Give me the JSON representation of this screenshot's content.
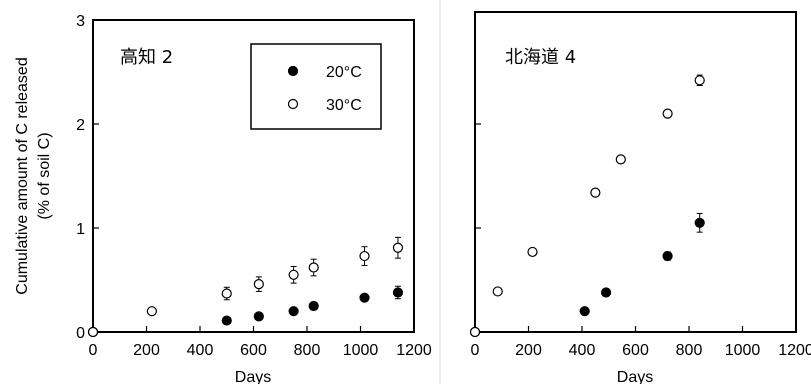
{
  "chart_data": [
    {
      "type": "scatter",
      "title": "高知 2",
      "xlabel": "Days",
      "ylabel_lines": [
        "Cumulative amount of C released",
        "(% of soil C)"
      ],
      "xlim": [
        0,
        1200
      ],
      "ylim": [
        0,
        3
      ],
      "x_ticks": [
        "0",
        "200",
        "400",
        "600",
        "800",
        "1000",
        "1200"
      ],
      "y_ticks": [
        "0",
        "1",
        "2",
        "3"
      ],
      "legend": {
        "placement": "top-right",
        "items": [
          "20°C",
          "30°C"
        ]
      },
      "series": [
        {
          "name": "20°C",
          "marker": "filled-circle",
          "points": [
            {
              "x": 0,
              "y": 0.0,
              "err": 0
            },
            {
              "x": 500,
              "y": 0.11,
              "err": 0
            },
            {
              "x": 620,
              "y": 0.15,
              "err": 0
            },
            {
              "x": 750,
              "y": 0.2,
              "err": 0
            },
            {
              "x": 825,
              "y": 0.25,
              "err": 0
            },
            {
              "x": 1015,
              "y": 0.33,
              "err": 0.03
            },
            {
              "x": 1140,
              "y": 0.38,
              "err": 0.06
            }
          ]
        },
        {
          "name": "30°C",
          "marker": "open-circle",
          "points": [
            {
              "x": 0,
              "y": 0.0,
              "err": 0
            },
            {
              "x": 220,
              "y": 0.2,
              "err": 0
            },
            {
              "x": 500,
              "y": 0.37,
              "err": 0.06
            },
            {
              "x": 620,
              "y": 0.46,
              "err": 0.07
            },
            {
              "x": 750,
              "y": 0.55,
              "err": 0.08
            },
            {
              "x": 825,
              "y": 0.62,
              "err": 0.08
            },
            {
              "x": 1015,
              "y": 0.73,
              "err": 0.09
            },
            {
              "x": 1140,
              "y": 0.81,
              "err": 0.1
            }
          ]
        }
      ]
    },
    {
      "type": "scatter",
      "title": "北海道 4",
      "xlabel": "Days",
      "xlim": [
        0,
        1200
      ],
      "ylim": [
        0,
        3
      ],
      "x_ticks": [
        "0",
        "200",
        "400",
        "600",
        "800",
        "1000",
        "1200"
      ],
      "series": [
        {
          "name": "20°C",
          "marker": "filled-circle",
          "points": [
            {
              "x": 0,
              "y": 0.0,
              "err": 0
            },
            {
              "x": 410,
              "y": 0.2,
              "err": 0
            },
            {
              "x": 490,
              "y": 0.38,
              "err": 0
            },
            {
              "x": 720,
              "y": 0.73,
              "err": 0.04
            },
            {
              "x": 840,
              "y": 1.05,
              "err": 0.09
            }
          ]
        },
        {
          "name": "30°C",
          "marker": "open-circle",
          "points": [
            {
              "x": 0,
              "y": 0.0,
              "err": 0
            },
            {
              "x": 85,
              "y": 0.39,
              "err": 0
            },
            {
              "x": 215,
              "y": 0.77,
              "err": 0
            },
            {
              "x": 450,
              "y": 1.34,
              "err": 0
            },
            {
              "x": 545,
              "y": 1.66,
              "err": 0
            },
            {
              "x": 720,
              "y": 2.1,
              "err": 0
            },
            {
              "x": 840,
              "y": 2.42,
              "err": 0.05
            }
          ]
        }
      ]
    }
  ]
}
